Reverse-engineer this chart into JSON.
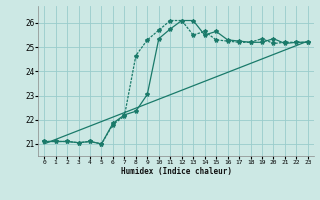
{
  "xlabel": "Humidex (Indice chaleur)",
  "bg_color": "#cce8e4",
  "grid_color": "#99cccc",
  "line_color": "#1a7a6a",
  "xlim": [
    -0.5,
    23.5
  ],
  "ylim": [
    20.5,
    26.7
  ],
  "yticks": [
    21,
    22,
    23,
    24,
    25,
    26
  ],
  "xticks": [
    0,
    1,
    2,
    3,
    4,
    5,
    6,
    7,
    8,
    9,
    10,
    11,
    12,
    13,
    14,
    15,
    16,
    17,
    18,
    19,
    20,
    21,
    22,
    23
  ],
  "line1_x": [
    0,
    1,
    2,
    3,
    4,
    5,
    6,
    7,
    8,
    9,
    10,
    11,
    12,
    13,
    14,
    15,
    16,
    17,
    18,
    19,
    20,
    21,
    22,
    23
  ],
  "line1_y": [
    21.1,
    21.1,
    21.1,
    21.05,
    21.1,
    21.0,
    21.85,
    22.2,
    22.35,
    23.05,
    25.35,
    25.75,
    26.1,
    26.1,
    25.5,
    25.65,
    25.3,
    25.25,
    25.2,
    25.2,
    25.35,
    25.15,
    25.2,
    25.2
  ],
  "line2_x": [
    0,
    1,
    2,
    3,
    4,
    5,
    6,
    7,
    8,
    9,
    10,
    11,
    12,
    13,
    14,
    15,
    16,
    17,
    18,
    19,
    20,
    21,
    22,
    23
  ],
  "line2_y": [
    21.1,
    21.1,
    21.1,
    21.05,
    21.1,
    21.0,
    21.8,
    22.15,
    24.65,
    25.3,
    25.7,
    26.1,
    26.1,
    25.5,
    25.65,
    25.3,
    25.25,
    25.2,
    25.2,
    25.35,
    25.15,
    25.2,
    25.2,
    25.2
  ],
  "line3_x": [
    0,
    23
  ],
  "line3_y": [
    21.0,
    25.25
  ]
}
